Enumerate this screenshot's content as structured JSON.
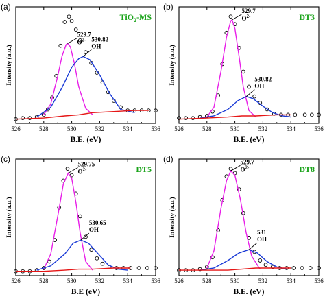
{
  "colors": {
    "o2": "#e81ee8",
    "oh": "#1a3ad6",
    "background": "#e51616",
    "data": "#000000",
    "title": "#1aa31a"
  },
  "chart_data": [
    {
      "type": "line",
      "panel_label": "(a)",
      "title": "TiO",
      "title_sub": "2",
      "title_suffix": "-MS",
      "xlabel": "B.E. (eV)",
      "ylabel": "Intensity (a.u.)",
      "xlim": [
        526,
        536
      ],
      "xticks": [
        "526",
        "528",
        "530",
        "532",
        "534",
        "536"
      ],
      "o2": {
        "center": 529.7,
        "label": "529.7",
        "species": "O",
        "species_sup": "2-"
      },
      "oh": {
        "center": 530.82,
        "label": "530.82",
        "species": "OH"
      },
      "series": [
        {
          "type": "scatter",
          "marker": "open-circle",
          "x": [
            526,
            526.5,
            527,
            527.5,
            528,
            528.3,
            528.6,
            528.9,
            529.2,
            529.5,
            529.8,
            530.0,
            530.3,
            530.6,
            531.0,
            531.4,
            531.8,
            532.2,
            532.6,
            533.0,
            533.5,
            534.0,
            534.5,
            535,
            535.5,
            536
          ],
          "y": [
            0.04,
            0.05,
            0.05,
            0.06,
            0.08,
            0.13,
            0.24,
            0.44,
            0.72,
            0.94,
            0.99,
            0.95,
            0.87,
            0.77,
            0.66,
            0.56,
            0.47,
            0.38,
            0.29,
            0.21,
            0.15,
            0.12,
            0.12,
            0.12,
            0.12,
            0.12
          ]
        },
        {
          "type": "line",
          "color": "o2",
          "x": [
            528,
            528.5,
            529,
            529.3,
            529.6,
            529.7,
            529.9,
            530.2,
            530.5,
            531,
            531.5
          ],
          "y": [
            0.08,
            0.18,
            0.44,
            0.62,
            0.73,
            0.74,
            0.71,
            0.55,
            0.34,
            0.14,
            0.08
          ]
        },
        {
          "type": "line",
          "color": "oh",
          "x": [
            527.5,
            528.5,
            529.3,
            530,
            530.5,
            530.82,
            531.3,
            532,
            532.7,
            533.5,
            534.5
          ],
          "y": [
            0.06,
            0.15,
            0.33,
            0.52,
            0.6,
            0.62,
            0.59,
            0.45,
            0.28,
            0.13,
            0.1
          ]
        },
        {
          "type": "line",
          "color": "background",
          "x": [
            526,
            528,
            529.5,
            530.5,
            531.5,
            533,
            534.5,
            535.5
          ],
          "y": [
            0.04,
            0.05,
            0.07,
            0.08,
            0.1,
            0.11,
            0.12,
            0.12
          ]
        }
      ]
    },
    {
      "type": "line",
      "panel_label": "(b)",
      "title": "DT3",
      "title_sub": "",
      "title_suffix": "",
      "xlabel": "B.E. (eV)",
      "ylabel": "Intensity (a.u.)",
      "xlim": [
        526,
        536
      ],
      "xticks": [
        "526",
        "528",
        "530",
        "532",
        "534",
        "536"
      ],
      "o2": {
        "center": 529.7,
        "label": "529.7",
        "species": "O",
        "species_sup": "2-"
      },
      "oh": {
        "center": 530.82,
        "label": "530.82",
        "species": "OH"
      },
      "series": [
        {
          "type": "scatter",
          "marker": "open-circle",
          "x": [
            526,
            526.5,
            527,
            527.5,
            528,
            528.4,
            528.8,
            529.1,
            529.4,
            529.7,
            530.0,
            530.3,
            530.6,
            531.0,
            531.4,
            531.8,
            532.3,
            532.8,
            533.3,
            533.8,
            534.3,
            535,
            535.5,
            536
          ],
          "y": [
            0.05,
            0.05,
            0.05,
            0.06,
            0.07,
            0.11,
            0.26,
            0.55,
            0.84,
            0.99,
            0.92,
            0.7,
            0.48,
            0.34,
            0.25,
            0.19,
            0.13,
            0.09,
            0.08,
            0.08,
            0.08,
            0.08,
            0.08,
            0.08
          ]
        },
        {
          "type": "line",
          "color": "o2",
          "x": [
            528,
            528.5,
            529,
            529.4,
            529.7,
            529.8,
            530.0,
            530.3,
            530.6,
            531.0,
            531.5
          ],
          "y": [
            0.06,
            0.15,
            0.48,
            0.8,
            0.95,
            0.96,
            0.88,
            0.62,
            0.34,
            0.12,
            0.06
          ]
        },
        {
          "type": "line",
          "color": "oh",
          "x": [
            527.5,
            528.5,
            529.5,
            530.2,
            530.82,
            531.3,
            532,
            532.7,
            533.4,
            534
          ],
          "y": [
            0.05,
            0.07,
            0.13,
            0.21,
            0.25,
            0.23,
            0.16,
            0.1,
            0.07,
            0.06
          ]
        },
        {
          "type": "line",
          "color": "background",
          "x": [
            526,
            528,
            529.5,
            530.5,
            531.5,
            533,
            534
          ],
          "y": [
            0.04,
            0.05,
            0.06,
            0.07,
            0.07,
            0.08,
            0.08
          ]
        }
      ]
    },
    {
      "type": "line",
      "panel_label": "(c)",
      "title": "DT5",
      "title_sub": "",
      "title_suffix": "",
      "xlabel": "B.E (eV)",
      "ylabel": "Intensity (a.u.)",
      "xlim": [
        526,
        536
      ],
      "xticks": [
        "526",
        "528",
        "530",
        "532",
        "534",
        "536"
      ],
      "o2": {
        "center": 529.75,
        "label": "529.75",
        "species": "O",
        "species_sup": "2-"
      },
      "oh": {
        "center": 530.65,
        "label": "530.65",
        "species": "OH"
      },
      "series": [
        {
          "type": "scatter",
          "marker": "open-circle",
          "x": [
            526,
            526.5,
            527,
            527.5,
            528,
            528.4,
            528.8,
            529.1,
            529.4,
            529.7,
            530.0,
            530.3,
            530.6,
            531.0,
            531.4,
            531.8,
            532.2,
            532.7,
            533.2,
            533.7,
            534.2,
            534.8,
            535.4,
            536
          ],
          "y": [
            0.04,
            0.04,
            0.04,
            0.05,
            0.07,
            0.13,
            0.33,
            0.63,
            0.88,
            0.99,
            0.93,
            0.76,
            0.55,
            0.36,
            0.24,
            0.16,
            0.11,
            0.08,
            0.07,
            0.07,
            0.07,
            0.07,
            0.07,
            0.07
          ]
        },
        {
          "type": "line",
          "color": "o2",
          "x": [
            528,
            528.5,
            529,
            529.4,
            529.75,
            530.0,
            530.3,
            530.6,
            531.0,
            531.5
          ],
          "y": [
            0.06,
            0.2,
            0.55,
            0.85,
            0.95,
            0.9,
            0.68,
            0.4,
            0.13,
            0.05
          ]
        },
        {
          "type": "line",
          "color": "oh",
          "x": [
            527.5,
            528.5,
            529.5,
            530.1,
            530.65,
            531.2,
            531.9,
            532.6,
            533.3,
            534
          ],
          "y": [
            0.05,
            0.09,
            0.2,
            0.3,
            0.33,
            0.3,
            0.2,
            0.1,
            0.06,
            0.05
          ]
        },
        {
          "type": "line",
          "color": "background",
          "x": [
            526,
            528,
            529.5,
            530.5,
            531.5,
            533,
            534.2
          ],
          "y": [
            0.04,
            0.04,
            0.05,
            0.06,
            0.06,
            0.07,
            0.07
          ]
        }
      ]
    },
    {
      "type": "line",
      "panel_label": "(d)",
      "title": "DT8",
      "title_sub": "",
      "title_suffix": "",
      "xlabel": "B.E. (eV)",
      "ylabel": "Intensity (a.u.)",
      "xlim": [
        526,
        536
      ],
      "xticks": [
        "526",
        "528",
        "530",
        "532",
        "534",
        "536"
      ],
      "o2": {
        "center": 529.7,
        "label": "529.7",
        "species": "O",
        "species_sup": "2-"
      },
      "oh": {
        "center": 531,
        "label": "531",
        "species": "OH"
      },
      "series": [
        {
          "type": "scatter",
          "marker": "open-circle",
          "x": [
            526,
            526.5,
            527,
            527.5,
            528,
            528.4,
            528.8,
            529.1,
            529.4,
            529.7,
            530.0,
            530.3,
            530.6,
            531.0,
            531.4,
            531.8,
            532.2,
            532.7,
            533.2,
            533.7,
            534.2,
            534.8,
            535.4,
            536
          ],
          "y": [
            0.05,
            0.05,
            0.05,
            0.06,
            0.08,
            0.17,
            0.42,
            0.7,
            0.92,
            0.99,
            0.95,
            0.8,
            0.58,
            0.35,
            0.22,
            0.14,
            0.1,
            0.08,
            0.07,
            0.07,
            0.07,
            0.07,
            0.07,
            0.07
          ]
        },
        {
          "type": "line",
          "color": "o2",
          "x": [
            528,
            528.5,
            529,
            529.4,
            529.7,
            530.0,
            530.4,
            530.8,
            531.2,
            531.8
          ],
          "y": [
            0.07,
            0.23,
            0.62,
            0.88,
            0.97,
            0.93,
            0.7,
            0.4,
            0.18,
            0.06
          ]
        },
        {
          "type": "line",
          "color": "oh",
          "x": [
            527.5,
            528.5,
            529.5,
            530.3,
            531,
            531.6,
            532.3,
            533,
            533.7
          ],
          "y": [
            0.05,
            0.07,
            0.14,
            0.21,
            0.24,
            0.21,
            0.13,
            0.08,
            0.06
          ]
        },
        {
          "type": "line",
          "color": "background",
          "x": [
            526,
            528,
            529.5,
            530.5,
            531.5,
            533,
            534
          ],
          "y": [
            0.05,
            0.05,
            0.05,
            0.06,
            0.07,
            0.07,
            0.07
          ]
        }
      ]
    }
  ]
}
